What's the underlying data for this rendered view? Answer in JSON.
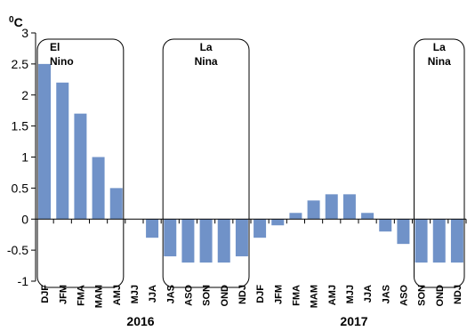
{
  "chart_data": {
    "type": "bar",
    "unit_label": {
      "degree": "0",
      "symbol": "C"
    },
    "categories": [
      "DJF",
      "JFM",
      "FMA",
      "MAM",
      "AMJ",
      "MJJ",
      "JJA",
      "JAS",
      "ASO",
      "SON",
      "OND",
      "NDJ",
      "DJF",
      "JFM",
      "FMA",
      "MAM",
      "AMJ",
      "MJJ",
      "JJA",
      "JAS",
      "ASO",
      "SON",
      "OND",
      "NDJ"
    ],
    "values": [
      2.5,
      2.2,
      1.7,
      1.0,
      0.5,
      0.0,
      -0.3,
      -0.6,
      -0.7,
      -0.7,
      -0.7,
      -0.6,
      -0.3,
      -0.1,
      0.1,
      0.3,
      0.4,
      0.4,
      0.1,
      -0.2,
      -0.4,
      -0.7,
      -0.7,
      -0.7
    ],
    "year_labels": [
      "2016",
      "2017"
    ],
    "ylim": [
      -1,
      3
    ],
    "yticks": [
      "3",
      "2.5",
      "2",
      "1.5",
      "1",
      "0.5",
      "0",
      "-0.5",
      "-1"
    ],
    "annotations": [
      {
        "lines": [
          "El",
          "Nino"
        ],
        "from_index": 0,
        "to_index": 4
      },
      {
        "lines": [
          "La",
          "Nina"
        ],
        "from_index": 7,
        "to_index": 11
      },
      {
        "lines": [
          "La",
          "Nina"
        ],
        "from_index": 21,
        "to_index": 23
      }
    ],
    "bar_color": "#7092c8",
    "grid": false
  }
}
